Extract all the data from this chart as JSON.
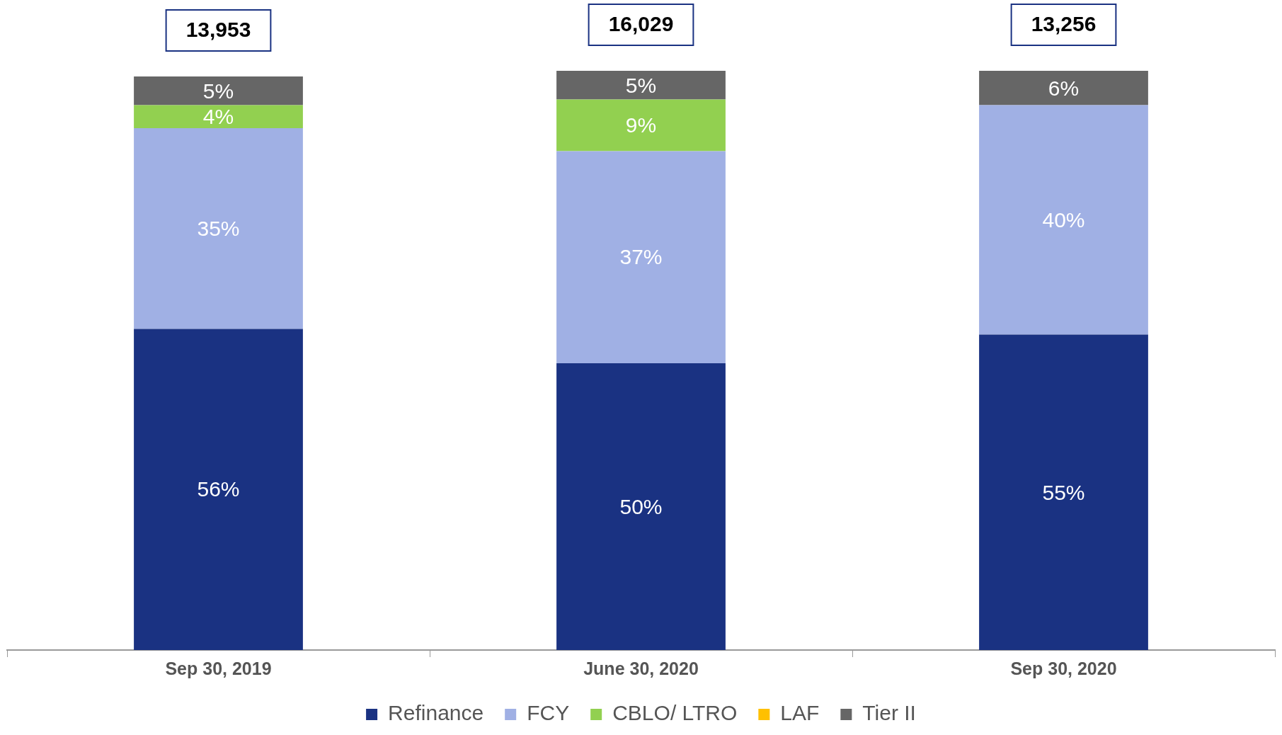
{
  "chart_data": {
    "type": "bar",
    "stacked": true,
    "tick_labels": "x",
    "categories": [
      "Sep 30, 2019",
      "June 30, 2020",
      "Sep 30, 2020"
    ],
    "series": [
      {
        "name": "Refinance",
        "color": "#1a3282",
        "values": [
          56,
          50,
          55
        ],
        "value_labels": [
          "56%",
          "50%",
          "55%"
        ]
      },
      {
        "name": "FCY",
        "color": "#a0b0e4",
        "values": [
          35,
          37,
          40
        ],
        "value_labels": [
          "35%",
          "37%",
          "40%"
        ]
      },
      {
        "name": "CBLO/ LTRO",
        "color": "#92d050",
        "values": [
          4,
          9,
          null
        ],
        "value_labels": [
          "4%",
          "9%",
          null
        ]
      },
      {
        "name": "LAF",
        "color": "#ffc000",
        "values": [
          null,
          null,
          null
        ]
      },
      {
        "name": "Tier II",
        "color": "#666666",
        "values": [
          5,
          5,
          6
        ],
        "value_labels": [
          "5%",
          "5%",
          "6%"
        ]
      }
    ],
    "annotations": [
      {
        "text": "13,953",
        "x": "Sep 30, 2019",
        "y": 100
      },
      {
        "text": "16,029",
        "x": "June 30, 2020",
        "y": 101
      },
      {
        "text": "13,256",
        "x": "Sep 30, 2020",
        "y": 101
      }
    ],
    "legend": "bottom",
    "grid": false
  }
}
